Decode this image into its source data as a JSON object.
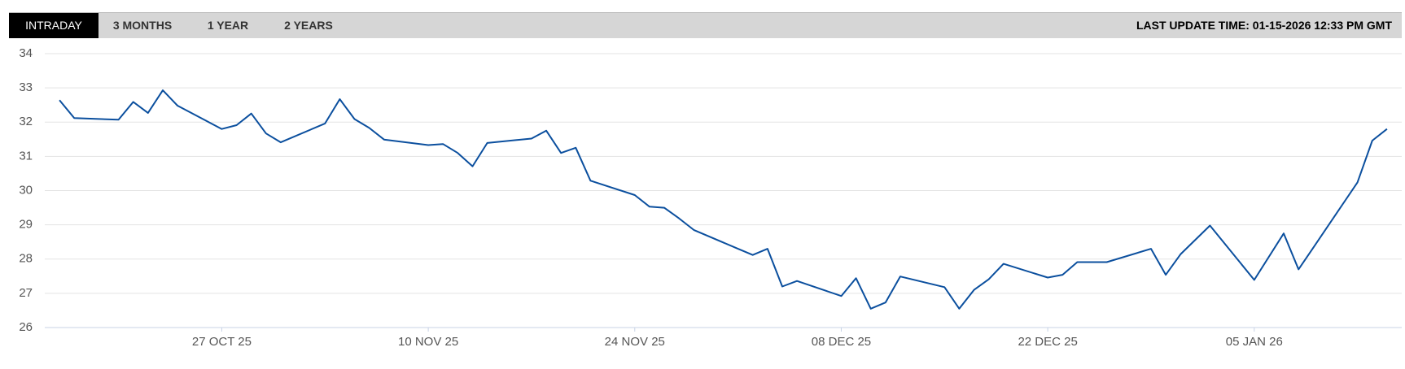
{
  "tabs": [
    "INTRADAY",
    "3 MONTHS",
    "1 YEAR",
    "2 YEARS"
  ],
  "last_update": "LAST UPDATE TIME: 01-15-2026 12:33 PM GMT",
  "chart_data": {
    "type": "line",
    "color": "#0b4f9e",
    "grid": true,
    "x": [
      "2025-10-16",
      "2025-10-17",
      "2025-10-20",
      "2025-10-21",
      "2025-10-22",
      "2025-10-23",
      "2025-10-24",
      "2025-10-27",
      "2025-10-28",
      "2025-10-29",
      "2025-10-30",
      "2025-10-31",
      "2025-11-03",
      "2025-11-04",
      "2025-11-05",
      "2025-11-06",
      "2025-11-07",
      "2025-11-10",
      "2025-11-11",
      "2025-11-12",
      "2025-11-13",
      "2025-11-14",
      "2025-11-17",
      "2025-11-18",
      "2025-11-19",
      "2025-11-20",
      "2025-11-21",
      "2025-11-24",
      "2025-11-25",
      "2025-11-26",
      "2025-11-27",
      "2025-11-28",
      "2025-12-01",
      "2025-12-02",
      "2025-12-03",
      "2025-12-04",
      "2025-12-05",
      "2025-12-08",
      "2025-12-09",
      "2025-12-10",
      "2025-12-11",
      "2025-12-12",
      "2025-12-15",
      "2025-12-16",
      "2025-12-17",
      "2025-12-18",
      "2025-12-19",
      "2025-12-22",
      "2025-12-23",
      "2025-12-24",
      "2025-12-26",
      "2025-12-29",
      "2025-12-30",
      "2025-12-31",
      "2026-01-02",
      "2026-01-05",
      "2026-01-07",
      "2026-01-08",
      "2026-01-09",
      "2026-01-12",
      "2026-01-13",
      "2026-01-14"
    ],
    "values": [
      32.64,
      32.12,
      32.07,
      32.59,
      32.27,
      32.93,
      32.48,
      31.8,
      31.91,
      32.25,
      31.67,
      31.41,
      31.96,
      32.67,
      32.09,
      31.83,
      31.49,
      31.33,
      31.36,
      31.1,
      30.71,
      31.39,
      31.52,
      31.75,
      31.1,
      31.25,
      30.29,
      29.87,
      29.53,
      29.5,
      29.19,
      28.85,
      28.3,
      28.12,
      28.3,
      27.2,
      27.36,
      26.92,
      27.44,
      26.55,
      26.73,
      27.49,
      27.18,
      26.55,
      27.1,
      27.41,
      27.86,
      27.46,
      27.54,
      27.91,
      27.91,
      28.3,
      27.54,
      28.14,
      28.98,
      27.39,
      28.75,
      27.7,
      28.33,
      30.24,
      31.46,
      31.8
    ],
    "xlim": [
      "2025-10-15",
      "2026-01-15"
    ],
    "xticks": [
      {
        "value": "2025-10-27",
        "label": "27 OCT 25"
      },
      {
        "value": "2025-11-10",
        "label": "10 NOV 25"
      },
      {
        "value": "2025-11-24",
        "label": "24 NOV 25"
      },
      {
        "value": "2025-12-08",
        "label": "08 DEC 25"
      },
      {
        "value": "2025-12-22",
        "label": "22 DEC 25"
      },
      {
        "value": "2026-01-05",
        "label": "05 JAN 26"
      }
    ],
    "ylim": [
      26,
      34
    ],
    "yticks": [
      26,
      27,
      28,
      29,
      30,
      31,
      32,
      33,
      34
    ]
  }
}
